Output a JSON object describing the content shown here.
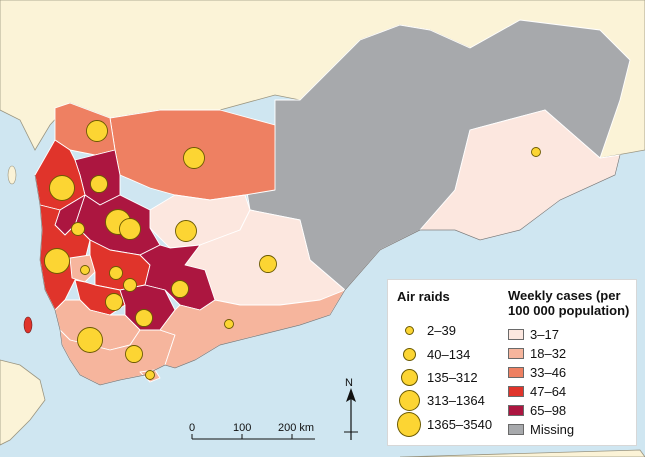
{
  "colors": {
    "sea": "#cfe6f1",
    "land": "#fbf3d7",
    "missing": "#a7a9ac",
    "classes": [
      "#fce7df",
      "#f6b59d",
      "#ee8062",
      "#e0342b",
      "#ac1640"
    ],
    "raid_fill": "#fcd533"
  },
  "legend": {
    "air_raids_title": "Air raids",
    "air_raids": [
      {
        "label": "2–39",
        "size": "smallest"
      },
      {
        "label": "40–134",
        "size": "small"
      },
      {
        "label": "135–312",
        "size": "medium"
      },
      {
        "label": "313–1364",
        "size": "large"
      },
      {
        "label": "1365–3540",
        "size": "largest"
      }
    ],
    "weekly_cases_title": "Weekly cases (per 100 000 population)",
    "weekly_cases": [
      {
        "label": "3–17"
      },
      {
        "label": "18–32"
      },
      {
        "label": "33–46"
      },
      {
        "label": "47–64"
      },
      {
        "label": "65–98"
      },
      {
        "label": "Missing"
      }
    ]
  },
  "scale_bar": {
    "labels": [
      "0",
      "100",
      "200 km"
    ]
  },
  "north_arrow": {
    "label": "N"
  },
  "regions": [
    {
      "id": "hadramawt",
      "class": 0
    },
    {
      "id": "al-mahrah",
      "class": "missing"
    },
    {
      "id": "al-jawf",
      "class": 2
    },
    {
      "id": "marib",
      "class": 0
    },
    {
      "id": "shabwah",
      "class": 0
    },
    {
      "id": "saada",
      "class": 2
    },
    {
      "id": "amran",
      "class": 4
    },
    {
      "id": "hajjah",
      "class": 3
    },
    {
      "id": "al-hudaydah",
      "class": 3
    },
    {
      "id": "sanaa",
      "class": 4
    },
    {
      "id": "al-mahwit",
      "class": 4
    },
    {
      "id": "raymah",
      "class": 1
    },
    {
      "id": "dhamar",
      "class": 3
    },
    {
      "id": "ibb",
      "class": 3
    },
    {
      "id": "al-bayda",
      "class": 4
    },
    {
      "id": "ad-dali",
      "class": 4
    },
    {
      "id": "lahij",
      "class": 1
    },
    {
      "id": "taizz",
      "class": 1
    },
    {
      "id": "abyan",
      "class": 1
    },
    {
      "id": "aden",
      "class": 1
    }
  ],
  "raids": [
    {
      "region": "saada",
      "size": 3
    },
    {
      "region": "al-jawf",
      "size": 3
    },
    {
      "region": "hajjah",
      "size": 4
    },
    {
      "region": "amran",
      "size": 2
    },
    {
      "region": "sanaa",
      "size": 4
    },
    {
      "region": "sanaa-city",
      "size": 3
    },
    {
      "region": "al-mahwit",
      "size": 1
    },
    {
      "region": "marib",
      "size": 3
    },
    {
      "region": "shabwah",
      "size": 2
    },
    {
      "region": "hadramawt",
      "size": 0
    },
    {
      "region": "al-hudaydah",
      "size": 4
    },
    {
      "region": "raymah",
      "size": 0
    },
    {
      "region": "dhamar",
      "size": 1
    },
    {
      "region": "al-bayda",
      "size": 2
    },
    {
      "region": "ibb",
      "size": 2
    },
    {
      "region": "taizz",
      "size": 1
    },
    {
      "region": "ad-dali",
      "size": 2
    },
    {
      "region": "abyan",
      "size": 0
    },
    {
      "region": "lahij",
      "size": 2
    },
    {
      "region": "taizz-coast",
      "size": 4
    },
    {
      "region": "aden",
      "size": 0
    }
  ]
}
